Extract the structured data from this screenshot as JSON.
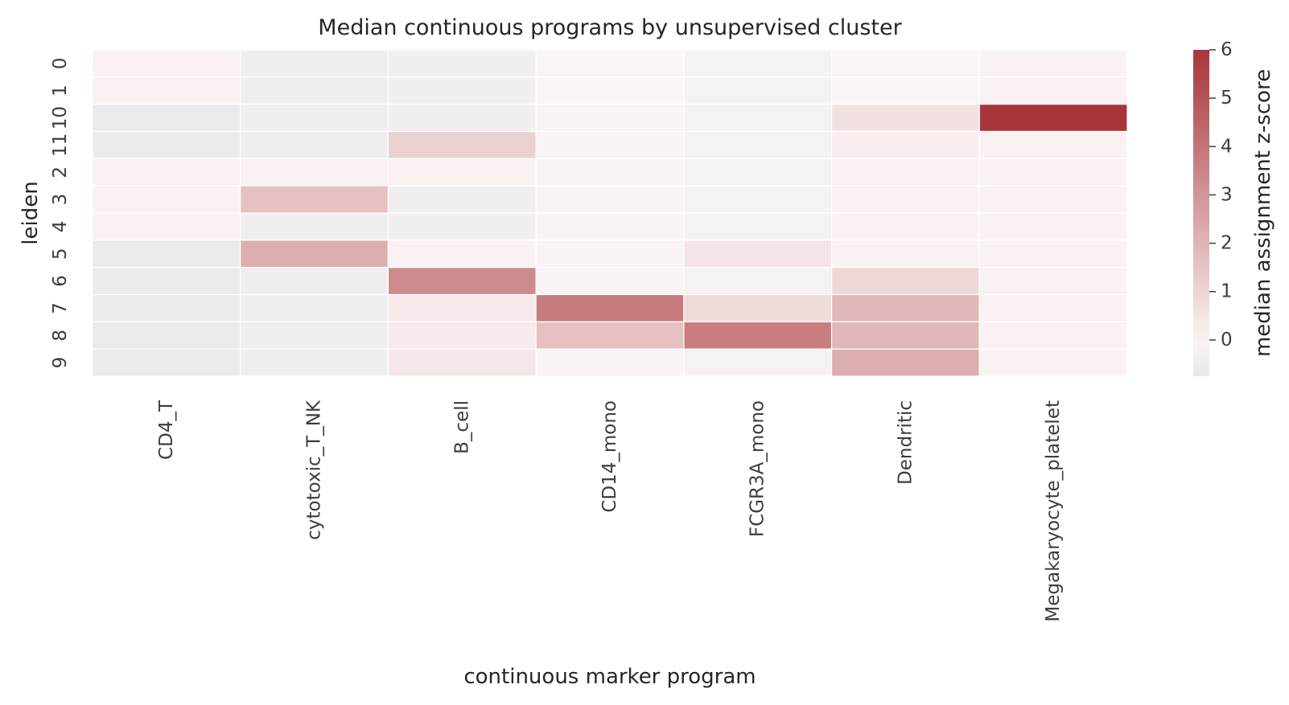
{
  "chart_data": {
    "type": "heatmap",
    "title": "Median continuous programs by unsupervised cluster",
    "xlabel": "continuous marker program",
    "ylabel": "leiden",
    "columns": [
      "CD4_T",
      "cytotoxic_T_NK",
      "B_cell",
      "CD14_mono",
      "FCGR3A_mono",
      "Dendritic",
      "Megakaryocyte_platelet"
    ],
    "rows": [
      "0",
      "1",
      "10",
      "11",
      "2",
      "3",
      "4",
      "5",
      "6",
      "7",
      "8",
      "9"
    ],
    "values": [
      [
        0.1,
        -0.4,
        -0.3,
        0.0,
        -0.15,
        0.0,
        0.05
      ],
      [
        0.1,
        -0.4,
        -0.3,
        0.0,
        -0.15,
        0.0,
        0.05
      ],
      [
        -0.6,
        -0.4,
        -0.3,
        -0.05,
        -0.15,
        0.6,
        6.0
      ],
      [
        -0.6,
        -0.4,
        1.1,
        -0.05,
        -0.15,
        0.2,
        0.05
      ],
      [
        0.1,
        0.1,
        0.1,
        -0.05,
        -0.15,
        0.05,
        0.05
      ],
      [
        0.1,
        1.6,
        -0.3,
        -0.05,
        -0.15,
        0.05,
        0.05
      ],
      [
        0.1,
        -0.4,
        -0.3,
        -0.05,
        -0.15,
        0.05,
        0.05
      ],
      [
        -0.6,
        2.2,
        0.05,
        -0.05,
        0.5,
        0.05,
        0.05
      ],
      [
        -0.6,
        -0.4,
        3.3,
        -0.05,
        -0.15,
        0.9,
        0.05
      ],
      [
        -0.6,
        -0.4,
        0.3,
        3.8,
        0.8,
        1.9,
        0.05
      ],
      [
        -0.6,
        -0.4,
        0.3,
        1.6,
        3.7,
        1.9,
        0.05
      ],
      [
        -0.6,
        -0.4,
        0.4,
        -0.05,
        -0.15,
        2.2,
        0.05
      ]
    ],
    "colorbar": {
      "label": "median assignment z-score",
      "vmin": -0.75,
      "vmax": 6,
      "ticks": [
        0,
        1,
        2,
        3,
        4,
        5,
        6
      ],
      "tick_labels": [
        "0",
        "1",
        "2",
        "3",
        "4",
        "5",
        "6"
      ]
    },
    "colors": {
      "low": "#e8e8ea",
      "mid": "#fbf4f4",
      "high": "#a8353a"
    }
  }
}
